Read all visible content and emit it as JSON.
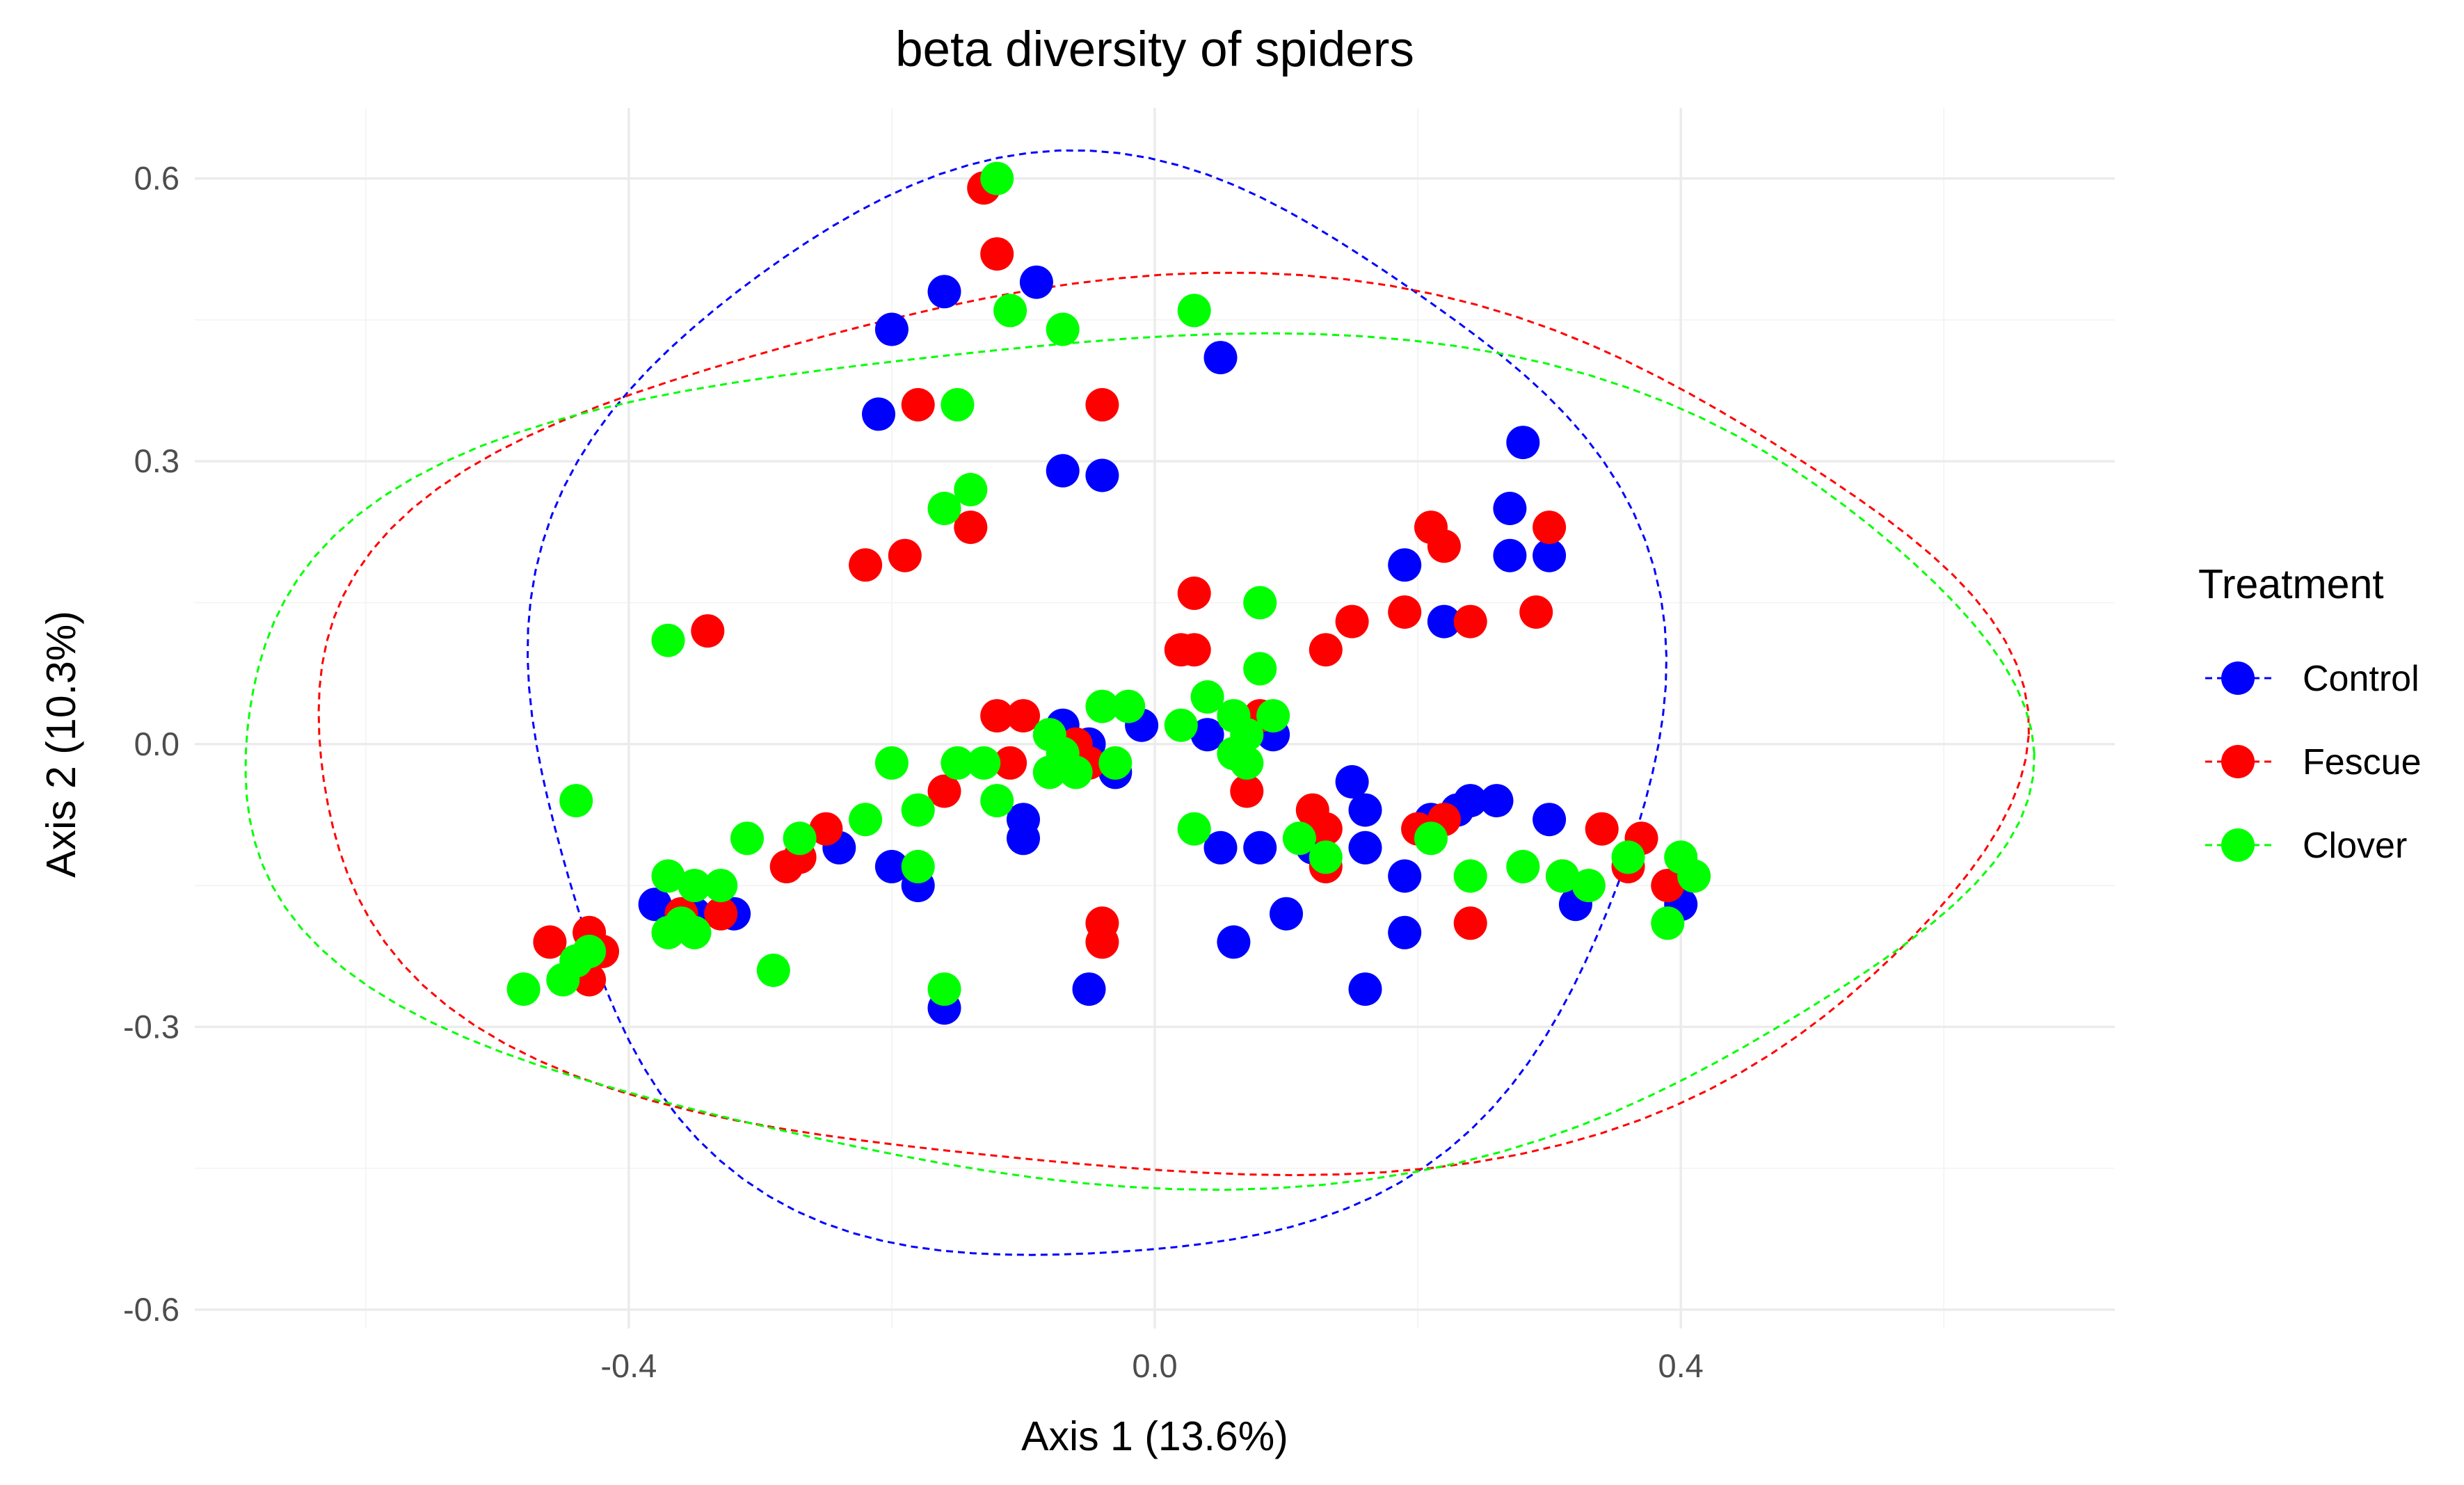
{
  "chart_data": {
    "type": "scatter",
    "title": "beta diversity of spiders",
    "xlabel": "Axis 1 (13.6%)",
    "ylabel": "Axis 2 (10.3%)",
    "xlim": [
      -0.73,
      0.73
    ],
    "ylim": [
      -0.62,
      0.675
    ],
    "x_ticks": [
      -0.4,
      0.0,
      0.4
    ],
    "x_tick_labels": [
      "-0.4",
      "0.0",
      "0.4"
    ],
    "y_ticks": [
      -0.6,
      -0.3,
      0.0,
      0.3,
      0.6
    ],
    "y_tick_labels": [
      "-0.6",
      "-0.3",
      "0.0",
      "0.3",
      "0.6"
    ],
    "grid": true,
    "legend": {
      "title": "Treatment",
      "position": "right"
    },
    "series": [
      {
        "name": "Control",
        "color": "#0000ff",
        "ellipse": {
          "cx": -0.05,
          "cy": 0.03,
          "rx": 0.43,
          "ry": 0.585
        },
        "points": [
          [
            -0.16,
            0.48
          ],
          [
            -0.2,
            0.44
          ],
          [
            -0.09,
            0.49
          ],
          [
            -0.21,
            0.35
          ],
          [
            0.05,
            0.41
          ],
          [
            -0.07,
            0.29
          ],
          [
            -0.04,
            0.285
          ],
          [
            0.28,
            0.32
          ],
          [
            0.27,
            0.25
          ],
          [
            0.27,
            0.2
          ],
          [
            0.3,
            0.2
          ],
          [
            0.19,
            0.19
          ],
          [
            0.22,
            0.13
          ],
          [
            -0.07,
            0.02
          ],
          [
            -0.05,
            0.0
          ],
          [
            -0.01,
            0.02
          ],
          [
            -0.03,
            -0.03
          ],
          [
            0.04,
            0.01
          ],
          [
            0.09,
            0.01
          ],
          [
            -0.1,
            -0.08
          ],
          [
            -0.1,
            -0.1
          ],
          [
            -0.24,
            -0.11
          ],
          [
            -0.2,
            -0.13
          ],
          [
            -0.18,
            -0.15
          ],
          [
            0.05,
            -0.11
          ],
          [
            0.08,
            -0.11
          ],
          [
            0.15,
            -0.04
          ],
          [
            0.16,
            -0.07
          ],
          [
            0.16,
            -0.11
          ],
          [
            0.19,
            -0.14
          ],
          [
            0.21,
            -0.08
          ],
          [
            0.23,
            -0.07
          ],
          [
            0.24,
            -0.06
          ],
          [
            0.26,
            -0.06
          ],
          [
            0.3,
            -0.08
          ],
          [
            0.32,
            -0.17
          ],
          [
            0.4,
            -0.17
          ],
          [
            -0.38,
            -0.17
          ],
          [
            -0.35,
            -0.18
          ],
          [
            -0.32,
            -0.18
          ],
          [
            -0.16,
            -0.28
          ],
          [
            -0.05,
            -0.26
          ],
          [
            0.06,
            -0.21
          ],
          [
            0.1,
            -0.18
          ],
          [
            0.19,
            -0.2
          ],
          [
            0.16,
            -0.26
          ],
          [
            0.12,
            -0.11
          ]
        ]
      },
      {
        "name": "Fescue",
        "color": "#ff0000",
        "ellipse": {
          "cx": 0.005,
          "cy": 0.01,
          "rx": 0.65,
          "ry": 0.475
        },
        "points": [
          [
            -0.13,
            0.59
          ],
          [
            -0.12,
            0.52
          ],
          [
            -0.18,
            0.36
          ],
          [
            -0.04,
            0.36
          ],
          [
            -0.14,
            0.23
          ],
          [
            -0.22,
            0.19
          ],
          [
            -0.19,
            0.2
          ],
          [
            0.03,
            0.16
          ],
          [
            0.02,
            0.1
          ],
          [
            0.03,
            0.1
          ],
          [
            0.13,
            0.1
          ],
          [
            0.15,
            0.13
          ],
          [
            0.19,
            0.14
          ],
          [
            0.21,
            0.23
          ],
          [
            0.22,
            0.21
          ],
          [
            0.24,
            0.13
          ],
          [
            0.29,
            0.14
          ],
          [
            0.3,
            0.23
          ],
          [
            -0.34,
            0.12
          ],
          [
            -0.12,
            0.03
          ],
          [
            -0.1,
            0.03
          ],
          [
            -0.11,
            -0.02
          ],
          [
            -0.06,
            0.0
          ],
          [
            -0.05,
            -0.02
          ],
          [
            0.08,
            0.03
          ],
          [
            0.07,
            -0.05
          ],
          [
            -0.16,
            -0.05
          ],
          [
            -0.27,
            -0.12
          ],
          [
            -0.25,
            -0.09
          ],
          [
            -0.28,
            -0.13
          ],
          [
            -0.33,
            -0.18
          ],
          [
            -0.36,
            -0.18
          ],
          [
            -0.46,
            -0.21
          ],
          [
            -0.43,
            -0.2
          ],
          [
            -0.42,
            -0.22
          ],
          [
            -0.43,
            -0.25
          ],
          [
            -0.04,
            -0.19
          ],
          [
            -0.04,
            -0.21
          ],
          [
            0.12,
            -0.07
          ],
          [
            0.13,
            -0.09
          ],
          [
            0.13,
            -0.13
          ],
          [
            0.2,
            -0.09
          ],
          [
            0.22,
            -0.08
          ],
          [
            0.24,
            -0.19
          ],
          [
            0.31,
            -0.14
          ],
          [
            0.34,
            -0.09
          ],
          [
            0.36,
            -0.13
          ],
          [
            0.37,
            -0.1
          ],
          [
            0.39,
            -0.15
          ]
        ]
      },
      {
        "name": "Clover",
        "color": "#00ff00",
        "ellipse": {
          "cx": -0.02,
          "cy": -0.01,
          "rx": 0.68,
          "ry": 0.45
        },
        "points": [
          [
            -0.12,
            0.6
          ],
          [
            -0.11,
            0.46
          ],
          [
            -0.07,
            0.44
          ],
          [
            0.03,
            0.46
          ],
          [
            -0.15,
            0.36
          ],
          [
            -0.14,
            0.27
          ],
          [
            -0.16,
            0.25
          ],
          [
            0.08,
            0.15
          ],
          [
            0.08,
            0.08
          ],
          [
            -0.37,
            0.11
          ],
          [
            -0.02,
            0.04
          ],
          [
            -0.04,
            0.04
          ],
          [
            0.04,
            0.05
          ],
          [
            0.06,
            0.03
          ],
          [
            0.09,
            0.03
          ],
          [
            0.02,
            0.02
          ],
          [
            0.07,
            0.01
          ],
          [
            -0.08,
            0.01
          ],
          [
            -0.07,
            -0.01
          ],
          [
            -0.06,
            -0.03
          ],
          [
            -0.03,
            -0.02
          ],
          [
            -0.08,
            -0.03
          ],
          [
            0.06,
            -0.01
          ],
          [
            0.07,
            -0.02
          ],
          [
            -0.2,
            -0.02
          ],
          [
            -0.15,
            -0.02
          ],
          [
            -0.13,
            -0.02
          ],
          [
            -0.12,
            -0.06
          ],
          [
            -0.18,
            -0.07
          ],
          [
            -0.22,
            -0.08
          ],
          [
            -0.44,
            -0.06
          ],
          [
            -0.31,
            -0.1
          ],
          [
            -0.27,
            -0.1
          ],
          [
            -0.18,
            -0.13
          ],
          [
            0.03,
            -0.09
          ],
          [
            0.11,
            -0.1
          ],
          [
            0.13,
            -0.12
          ],
          [
            0.21,
            -0.1
          ],
          [
            0.24,
            -0.14
          ],
          [
            0.28,
            -0.13
          ],
          [
            0.31,
            -0.14
          ],
          [
            0.33,
            -0.15
          ],
          [
            0.36,
            -0.12
          ],
          [
            0.4,
            -0.12
          ],
          [
            0.41,
            -0.14
          ],
          [
            0.39,
            -0.19
          ],
          [
            -0.37,
            -0.14
          ],
          [
            -0.35,
            -0.15
          ],
          [
            -0.33,
            -0.15
          ],
          [
            -0.36,
            -0.19
          ],
          [
            -0.37,
            -0.2
          ],
          [
            -0.35,
            -0.2
          ],
          [
            -0.29,
            -0.24
          ],
          [
            -0.43,
            -0.22
          ],
          [
            -0.44,
            -0.23
          ],
          [
            -0.45,
            -0.25
          ],
          [
            -0.48,
            -0.26
          ],
          [
            -0.16,
            -0.26
          ]
        ]
      }
    ]
  }
}
